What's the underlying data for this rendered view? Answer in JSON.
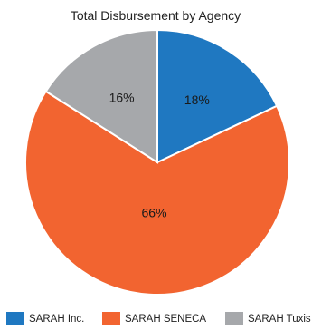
{
  "chart_data": {
    "type": "pie",
    "title": "Total Disbursement by Agency",
    "categories": [
      "SARAH Inc.",
      "SARAH SENECA",
      "SARAH Tuxis"
    ],
    "values": [
      18,
      66,
      16
    ],
    "value_labels": [
      "18%",
      "66%",
      "16%"
    ],
    "colors": [
      "#1f78c1",
      "#f26430",
      "#a6a8ab"
    ],
    "legend_position": "bottom"
  }
}
